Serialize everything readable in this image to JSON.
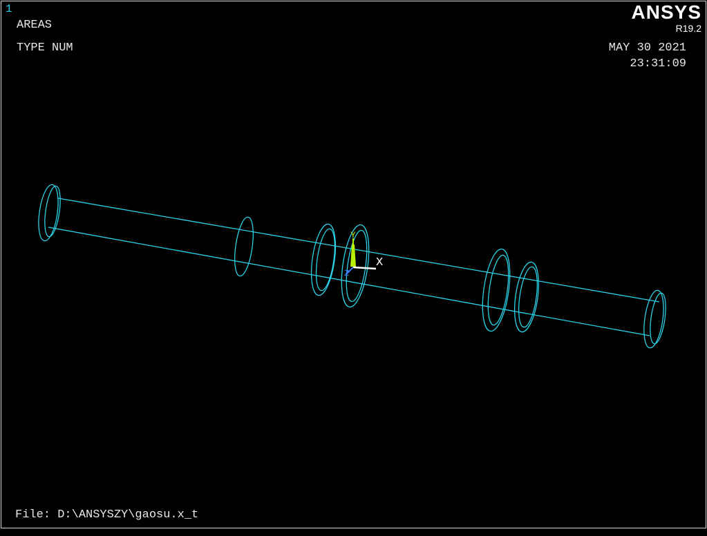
{
  "window_number": "1",
  "plot": {
    "type": "AREAS",
    "label_mode": "TYPE NUM"
  },
  "brand": {
    "name": "ANSYS",
    "version": "R19.2"
  },
  "timestamp": {
    "date": "MAY 30 2021",
    "time": "23:31:09"
  },
  "file_line": "File: D:\\ANSYSZY\\gaosu.x_t",
  "triad": {
    "x_label": "X",
    "y_label": "Y",
    "z_label": "Z"
  },
  "colors": {
    "background": "#000000",
    "geometry": "#2ad3e8",
    "text": "#e8e8e8",
    "triad_x": "#ffffff",
    "triad_y": "#b8f000",
    "triad_z": "#3a7bff"
  }
}
